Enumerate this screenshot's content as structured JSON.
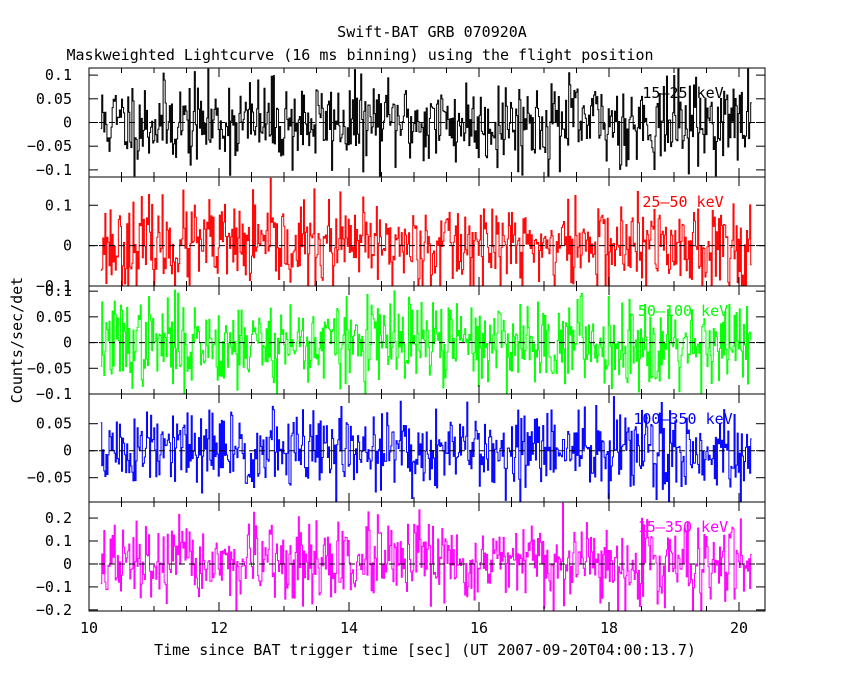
{
  "figure": {
    "title": "Swift-BAT GRB 070920A",
    "subtitle": "Maskweighted Lightcurve (16 ms binning) using the flight position",
    "xlabel": "Time since BAT trigger time [sec] (UT 2007-09-20T04:00:13.7)",
    "ylabel": "Counts/sec/det"
  },
  "chart_data": [
    {
      "type": "line",
      "name": "15-25 keV",
      "label": "15–25 keV",
      "color": "#000000",
      "xlim": [
        10,
        20.4
      ],
      "ylim": [
        -0.115,
        0.115
      ],
      "yticks": [
        {
          "v": -0.1,
          "t": "−0.1"
        },
        {
          "v": -0.05,
          "t": "−0.05"
        },
        {
          "v": 0,
          "t": "0"
        },
        {
          "v": 0.05,
          "t": "0.05"
        },
        {
          "v": 0.1,
          "t": "0.1"
        }
      ],
      "amplitude": 0.045,
      "seed": 11
    },
    {
      "type": "line",
      "name": "25-50 keV",
      "label": "25–50 keV",
      "color": "#ff0000",
      "xlim": [
        10,
        20.4
      ],
      "ylim": [
        -0.1,
        0.17
      ],
      "yticks": [
        {
          "v": -0.1,
          "t": "−0.1"
        },
        {
          "v": 0,
          "t": "0"
        },
        {
          "v": 0.1,
          "t": "0.1"
        }
      ],
      "amplitude": 0.055,
      "seed": 23
    },
    {
      "type": "line",
      "name": "50-100 keV",
      "label": "50–100 keV",
      "color": "#00ff00",
      "xlim": [
        10,
        20.4
      ],
      "ylim": [
        -0.1,
        0.11
      ],
      "yticks": [
        {
          "v": -0.1,
          "t": "−0.1"
        },
        {
          "v": -0.05,
          "t": "−0.05"
        },
        {
          "v": 0,
          "t": "0"
        },
        {
          "v": 0.05,
          "t": "0.05"
        },
        {
          "v": 0.1,
          "t": "0.1"
        }
      ],
      "amplitude": 0.042,
      "seed": 37
    },
    {
      "type": "line",
      "name": "100-350 keV",
      "label": "100–350 keV",
      "color": "#0000ff",
      "xlim": [
        10,
        20.4
      ],
      "ylim": [
        -0.095,
        0.105
      ],
      "yticks": [
        {
          "v": -0.05,
          "t": "−0.05"
        },
        {
          "v": 0,
          "t": "0"
        },
        {
          "v": 0.05,
          "t": "0.05"
        }
      ],
      "amplitude": 0.038,
      "seed": 51
    },
    {
      "type": "line",
      "name": "15-350 keV",
      "label": "15–350 keV",
      "color": "#ff00ff",
      "xlim": [
        10,
        20.4
      ],
      "ylim": [
        -0.205,
        0.27
      ],
      "yticks": [
        {
          "v": -0.2,
          "t": "−0.2"
        },
        {
          "v": -0.1,
          "t": "−0.1"
        },
        {
          "v": 0,
          "t": "0"
        },
        {
          "v": 0.1,
          "t": "0.1"
        },
        {
          "v": 0.2,
          "t": "0.2"
        }
      ],
      "amplitude": 0.085,
      "seed": 67
    }
  ],
  "x_axis": {
    "range": [
      10,
      20.4
    ],
    "ticks": [
      {
        "v": 10,
        "t": "10"
      },
      {
        "v": 12,
        "t": "12"
      },
      {
        "v": 14,
        "t": "14"
      },
      {
        "v": 16,
        "t": "16"
      },
      {
        "v": 18,
        "t": "18"
      },
      {
        "v": 20,
        "t": "20"
      }
    ],
    "data_start": 10.18,
    "data_end": 20.18,
    "bin_width_sec": 0.016
  }
}
